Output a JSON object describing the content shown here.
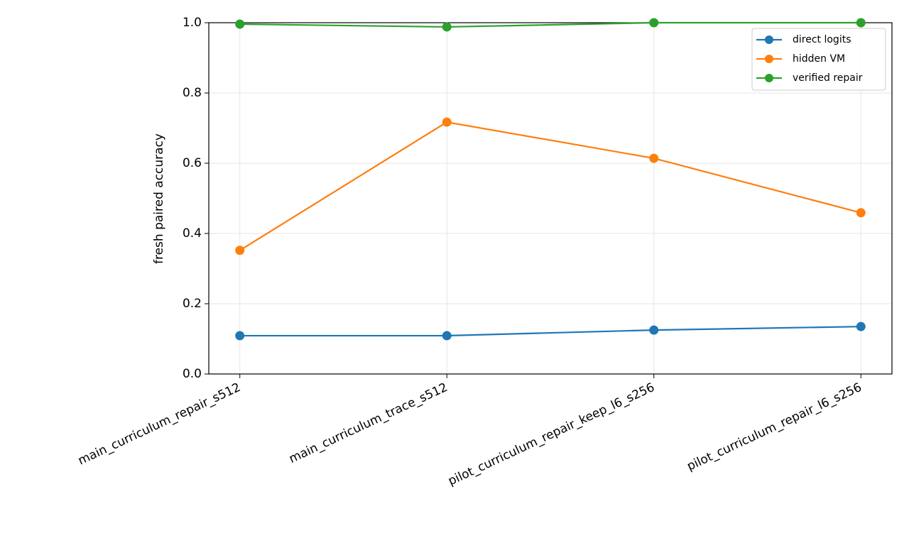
{
  "chart_data": {
    "type": "line",
    "y_label": "fresh paired accuracy",
    "categories": [
      "main_curriculum_repair_s512",
      "main_curriculum_trace_s512",
      "pilot_curriculum_repair_keep_l6_s256",
      "pilot_curriculum_repair_l6_s256"
    ],
    "series": [
      {
        "name": "direct logits",
        "color": "#1f77b4",
        "values": [
          0.109,
          0.109,
          0.125,
          0.135
        ]
      },
      {
        "name": "hidden VM",
        "color": "#ff7f0e",
        "values": [
          0.352,
          0.717,
          0.614,
          0.459
        ]
      },
      {
        "name": "verified repair",
        "color": "#2ca02c",
        "values": [
          0.996,
          0.988,
          1.0,
          1.0
        ]
      }
    ],
    "ylim": [
      0,
      1
    ],
    "yticks": [
      {
        "value": 0,
        "label": "0.0"
      },
      0.2,
      0.4,
      0.6,
      0.8,
      {
        "value": 1,
        "label": "1.0"
      }
    ],
    "grid": true,
    "legend": "upper right"
  }
}
